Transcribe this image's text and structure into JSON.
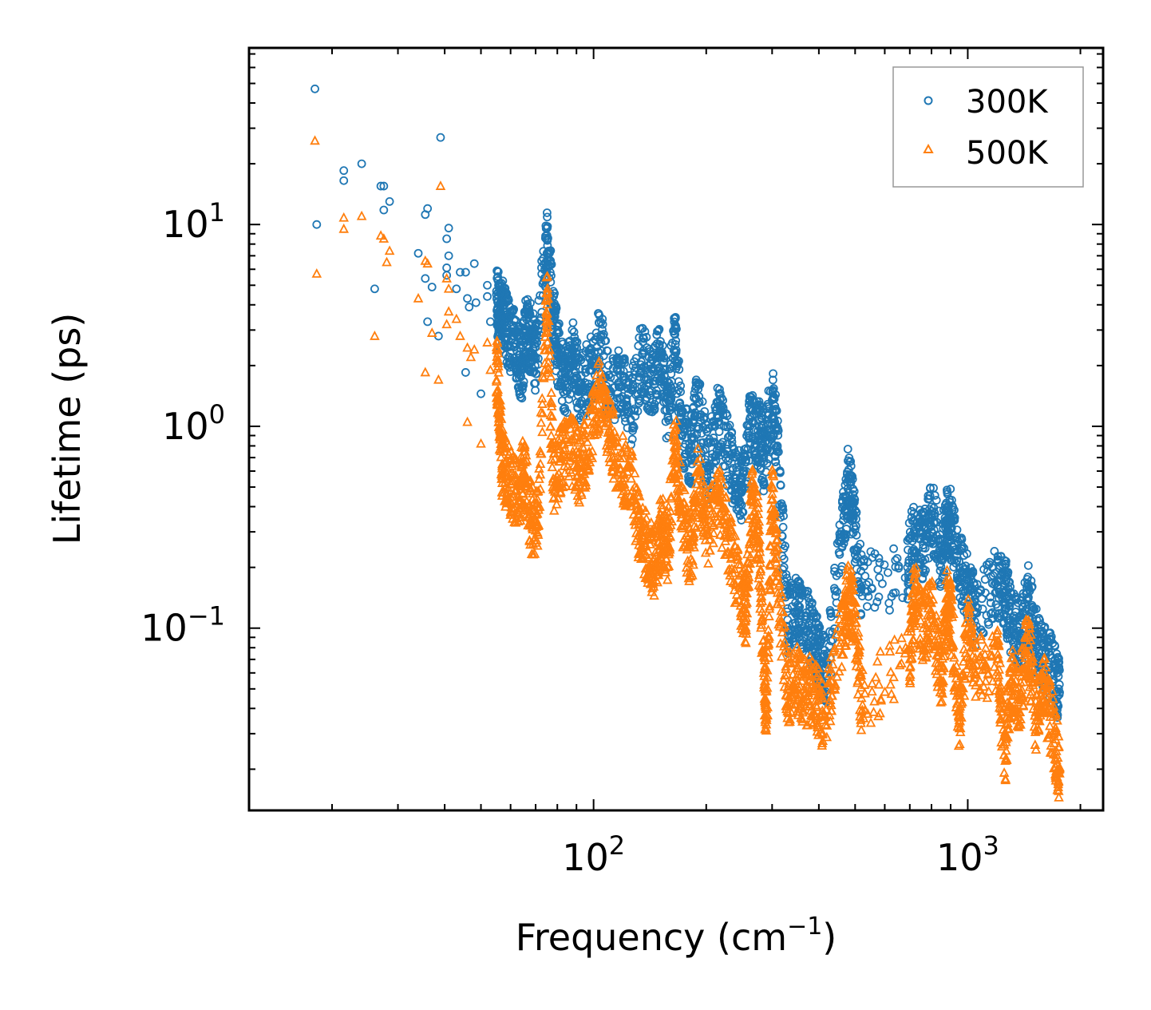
{
  "chart_data": {
    "type": "scatter",
    "title": "",
    "xlabel": "Frequency (cm",
    "xlabel_sup": "−1",
    "xlabel_suffix": ")",
    "ylabel": "Lifetime (ps)",
    "xscale": "log",
    "yscale": "log",
    "xlim": [
      12,
      2300
    ],
    "ylim": [
      0.0125,
      75
    ],
    "x_ticks": [
      {
        "value": 100,
        "base": "10",
        "exp": "2"
      },
      {
        "value": 1000,
        "base": "10",
        "exp": "3"
      }
    ],
    "y_ticks": [
      {
        "value": 0.1,
        "base": "10",
        "exp": "−1"
      },
      {
        "value": 1,
        "base": "10",
        "exp": "0"
      },
      {
        "value": 10,
        "base": "10",
        "exp": "1"
      }
    ],
    "legend_position": "top-right",
    "series": [
      {
        "name": "300K",
        "marker": "circle",
        "color": "#1f77b4",
        "points": [
          [
            18,
            47
          ],
          [
            18.2,
            10
          ],
          [
            21.5,
            18.5
          ],
          [
            21.5,
            16.5
          ],
          [
            24,
            20
          ],
          [
            26,
            4.8
          ],
          [
            27,
            15.5
          ],
          [
            27.5,
            15.5
          ],
          [
            27.5,
            11.8
          ],
          [
            28.5,
            13
          ],
          [
            34,
            7.2
          ],
          [
            35.5,
            11.2
          ],
          [
            36,
            12
          ],
          [
            35.5,
            5.4
          ],
          [
            36,
            3.3
          ],
          [
            37,
            4.9
          ],
          [
            38.5,
            2.8
          ],
          [
            39,
            27
          ],
          [
            41,
            9.6
          ],
          [
            40.5,
            8.5
          ],
          [
            41,
            7
          ],
          [
            40.5,
            6.1
          ],
          [
            40.5,
            5.6
          ],
          [
            43,
            4.8
          ],
          [
            44,
            5.8
          ],
          [
            45.5,
            5.8
          ],
          [
            46,
            4.3
          ],
          [
            46.5,
            3.9
          ],
          [
            48,
            6.4
          ],
          [
            48.5,
            4.1
          ],
          [
            45.5,
            1.85
          ],
          [
            50,
            1.45
          ],
          [
            52,
            5
          ],
          [
            52,
            4.4
          ],
          [
            53,
            3.3
          ],
          [
            55,
            4.5
          ],
          [
            56,
            3.6
          ],
          [
            57.5,
            3.5
          ],
          [
            59,
            2.9
          ],
          [
            62,
            2.55
          ],
          [
            64,
            1.9
          ],
          [
            66,
            3
          ],
          [
            68,
            2.7
          ],
          [
            70,
            2.2
          ],
          [
            75,
            8.4
          ],
          [
            78,
            3.8
          ],
          [
            80,
            2.4
          ],
          [
            84,
            1.6
          ],
          [
            88,
            2.35
          ],
          [
            92,
            1.5
          ],
          [
            98,
            1.9
          ],
          [
            104,
            2.7
          ],
          [
            110,
            1.45
          ],
          [
            118,
            1.8
          ],
          [
            126,
            1.2
          ],
          [
            135,
            2.3
          ],
          [
            143,
            1.5
          ],
          [
            150,
            2.35
          ],
          [
            158,
            1.1
          ],
          [
            165,
            2.85
          ],
          [
            172,
            0.9
          ],
          [
            182,
            0.75
          ],
          [
            190,
            1.3
          ],
          [
            202,
            0.62
          ],
          [
            215,
            1.1
          ],
          [
            228,
            0.75
          ],
          [
            240,
            0.55
          ],
          [
            250,
            0.48
          ],
          [
            262,
            1.0
          ],
          [
            275,
            0.95
          ],
          [
            285,
            0.7
          ],
          [
            300,
            1.35
          ],
          [
            310,
            0.8
          ],
          [
            330,
            0.11
          ],
          [
            350,
            0.12
          ],
          [
            370,
            0.11
          ],
          [
            390,
            0.085
          ],
          [
            400,
            0.07
          ],
          [
            420,
            0.058
          ],
          [
            460,
            0.28
          ],
          [
            480,
            0.55
          ],
          [
            495,
            0.35
          ],
          [
            520,
            0.16
          ],
          [
            690,
            0.2
          ],
          [
            720,
            0.3
          ],
          [
            760,
            0.25
          ],
          [
            800,
            0.38
          ],
          [
            850,
            0.22
          ],
          [
            880,
            0.34
          ],
          [
            900,
            0.33
          ],
          [
            950,
            0.2
          ],
          [
            1000,
            0.16
          ],
          [
            1050,
            0.12
          ],
          [
            1200,
            0.17
          ],
          [
            1260,
            0.15
          ],
          [
            1300,
            0.11
          ],
          [
            1380,
            0.09
          ],
          [
            1450,
            0.14
          ],
          [
            1520,
            0.085
          ],
          [
            1600,
            0.07
          ],
          [
            1700,
            0.06
          ],
          [
            1760,
            0.048
          ]
        ]
      },
      {
        "name": "500K",
        "marker": "triangle",
        "color": "#ff7f0e",
        "points": [
          [
            18,
            26
          ],
          [
            18.2,
            5.7
          ],
          [
            21.5,
            10.8
          ],
          [
            21.5,
            9.5
          ],
          [
            24,
            11
          ],
          [
            26,
            2.8
          ],
          [
            27,
            8.8
          ],
          [
            27.5,
            8.5
          ],
          [
            28,
            6.5
          ],
          [
            28.5,
            7.4
          ],
          [
            34,
            4.3
          ],
          [
            35.5,
            6.6
          ],
          [
            36,
            6.4
          ],
          [
            35.5,
            1.85
          ],
          [
            37,
            2.9
          ],
          [
            38.5,
            1.7
          ],
          [
            39,
            15.5
          ],
          [
            40.5,
            5.4
          ],
          [
            41,
            4.8
          ],
          [
            41,
            3.7
          ],
          [
            40.5,
            3.2
          ],
          [
            43,
            3.4
          ],
          [
            44,
            2.8
          ],
          [
            46,
            2.45
          ],
          [
            47,
            2.2
          ],
          [
            48,
            2.4
          ],
          [
            46,
            1.05
          ],
          [
            50,
            0.82
          ],
          [
            52,
            2.6
          ],
          [
            53,
            1.9
          ],
          [
            55,
            2.1
          ],
          [
            56,
            1.2
          ],
          [
            57,
            0.65
          ],
          [
            60,
            0.52
          ],
          [
            63,
            0.45
          ],
          [
            65,
            0.6
          ],
          [
            68,
            0.35
          ],
          [
            71,
            0.32
          ],
          [
            75,
            4.6
          ],
          [
            78,
            0.55
          ],
          [
            82,
            0.7
          ],
          [
            88,
            0.75
          ],
          [
            92,
            0.6
          ],
          [
            98,
            0.9
          ],
          [
            104,
            1.5
          ],
          [
            110,
            0.95
          ],
          [
            118,
            0.62
          ],
          [
            126,
            0.55
          ],
          [
            133,
            0.3
          ],
          [
            140,
            0.24
          ],
          [
            146,
            0.21
          ],
          [
            152,
            0.32
          ],
          [
            158,
            0.25
          ],
          [
            165,
            0.85
          ],
          [
            172,
            0.38
          ],
          [
            182,
            0.22
          ],
          [
            190,
            0.55
          ],
          [
            202,
            0.3
          ],
          [
            215,
            0.45
          ],
          [
            228,
            0.28
          ],
          [
            245,
            0.16
          ],
          [
            255,
            0.12
          ],
          [
            265,
            0.45
          ],
          [
            275,
            0.3
          ],
          [
            285,
            0.06
          ],
          [
            290,
            0.035
          ],
          [
            300,
            0.5
          ],
          [
            310,
            0.18
          ],
          [
            330,
            0.05
          ],
          [
            350,
            0.055
          ],
          [
            370,
            0.048
          ],
          [
            390,
            0.05
          ],
          [
            410,
            0.035
          ],
          [
            460,
            0.09
          ],
          [
            480,
            0.14
          ],
          [
            495,
            0.12
          ],
          [
            520,
            0.045
          ],
          [
            700,
            0.07
          ],
          [
            720,
            0.15
          ],
          [
            760,
            0.1
          ],
          [
            800,
            0.12
          ],
          [
            850,
            0.055
          ],
          [
            880,
            0.14
          ],
          [
            900,
            0.12
          ],
          [
            950,
            0.035
          ],
          [
            1000,
            0.1
          ],
          [
            1050,
            0.06
          ],
          [
            1200,
            0.07
          ],
          [
            1260,
            0.022
          ],
          [
            1300,
            0.06
          ],
          [
            1380,
            0.045
          ],
          [
            1450,
            0.09
          ],
          [
            1520,
            0.035
          ],
          [
            1600,
            0.05
          ],
          [
            1700,
            0.03
          ],
          [
            1760,
            0.02
          ]
        ]
      }
    ]
  }
}
